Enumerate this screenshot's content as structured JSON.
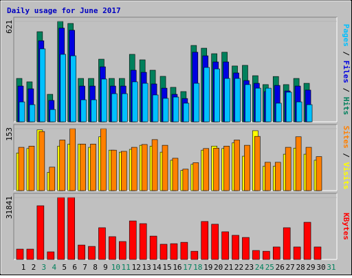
{
  "chart_data": [
    {
      "type": "bar",
      "title": "Daily usage for June 2017",
      "categories": [
        "1",
        "2",
        "3",
        "4",
        "5",
        "6",
        "7",
        "8",
        "9",
        "10",
        "11",
        "12",
        "13",
        "14",
        "15",
        "16",
        "17",
        "18",
        "19",
        "20",
        "21",
        "22",
        "23",
        "24",
        "25",
        "26",
        "27",
        "28",
        "29",
        "30",
        "31"
      ],
      "highlight_categories": [
        "3",
        "4",
        "10",
        "11",
        "17",
        "18",
        "24",
        "25",
        "31"
      ],
      "highlight_color": "#00805c",
      "legend_separator": " / ",
      "series": [
        {
          "name": "Hits",
          "color": "#00805c",
          "values": [
            268,
            247,
            557,
            170,
            621,
            608,
            268,
            268,
            387,
            268,
            268,
            417,
            383,
            319,
            281,
            213,
            187,
            472,
            455,
            421,
            430,
            345,
            349,
            285,
            230,
            280,
            230,
            268,
            238,
            null,
            null
          ]
        },
        {
          "name": "Files",
          "color": "#0000e0",
          "values": [
            221,
            204,
            501,
            132,
            579,
            566,
            221,
            221,
            340,
            221,
            221,
            319,
            306,
            234,
            208,
            170,
            144,
            430,
            408,
            370,
            370,
            302,
            255,
            238,
            187,
            225,
            191,
            221,
            196,
            null,
            null
          ]
        },
        {
          "name": "Pages",
          "color": "#00c0ff",
          "values": [
            123,
            106,
            451,
            76,
            417,
            408,
            136,
            136,
            264,
            174,
            174,
            247,
            238,
            166,
            145,
            153,
            115,
            238,
            336,
            327,
            268,
            268,
            230,
            208,
            208,
            115,
            183,
            123,
            106,
            null,
            null
          ]
        }
      ],
      "legend_order": [
        2,
        1,
        0
      ],
      "ylim": [
        0,
        621
      ],
      "yticks": [
        621
      ]
    },
    {
      "type": "bar",
      "series": [
        {
          "name": "Visits",
          "color": "#ffff00",
          "values": [
            93,
            104,
            150,
            45,
            110,
            115,
            115,
            107,
            133,
            100,
            95,
            102,
            112,
            110,
            95,
            75,
            50,
            65,
            100,
            110,
            104,
            118,
            85,
            148,
            60,
            60,
            90,
            105,
            90,
            75,
            null
          ]
        },
        {
          "name": "Sites",
          "color": "#ff8000",
          "values": [
            107,
            110,
            146,
            58,
            125,
            153,
            115,
            115,
            153,
            100,
            97,
            107,
            114,
            126,
            112,
            80,
            53,
            69,
            104,
            105,
            110,
            125,
            112,
            134,
            70,
            70,
            107,
            133,
            107,
            84,
            null
          ]
        }
      ],
      "legend_order": [
        1,
        0
      ],
      "ylim": [
        0,
        153
      ],
      "yticks": [
        153
      ]
    },
    {
      "type": "bar",
      "series": [
        {
          "name": "KBytes",
          "color": "#ff0000",
          "values": [
            5300,
            5300,
            27600,
            3900,
            31841,
            31841,
            7400,
            6700,
            16300,
            11700,
            9200,
            19800,
            18400,
            12000,
            7800,
            8100,
            8800,
            4200,
            19500,
            18100,
            14200,
            12400,
            11300,
            4600,
            4200,
            6400,
            16300,
            6400,
            19100,
            6400,
            null
          ]
        }
      ],
      "legend_order": [
        0
      ],
      "ylim": [
        0,
        31841
      ],
      "yticks": [
        31841
      ]
    }
  ]
}
